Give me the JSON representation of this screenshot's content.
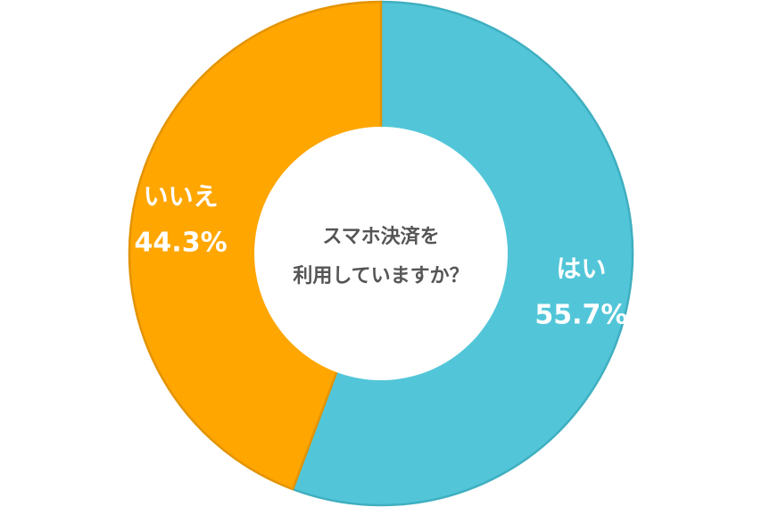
{
  "chart_data": {
    "type": "pie",
    "variant": "donut",
    "center_text": [
      "スマホ決済を",
      "利用していますか？"
    ],
    "slices": [
      {
        "label": "はい",
        "value": 55.7,
        "value_label": "55.7%",
        "color": "#52C6D8",
        "border": "#3FAFC0"
      },
      {
        "label": "いいえ",
        "value": 44.3,
        "value_label": "44.3%",
        "color": "#FFA600",
        "border": "#E39300"
      }
    ],
    "start": "12 o'clock",
    "direction": "clockwise",
    "legend": "none"
  }
}
